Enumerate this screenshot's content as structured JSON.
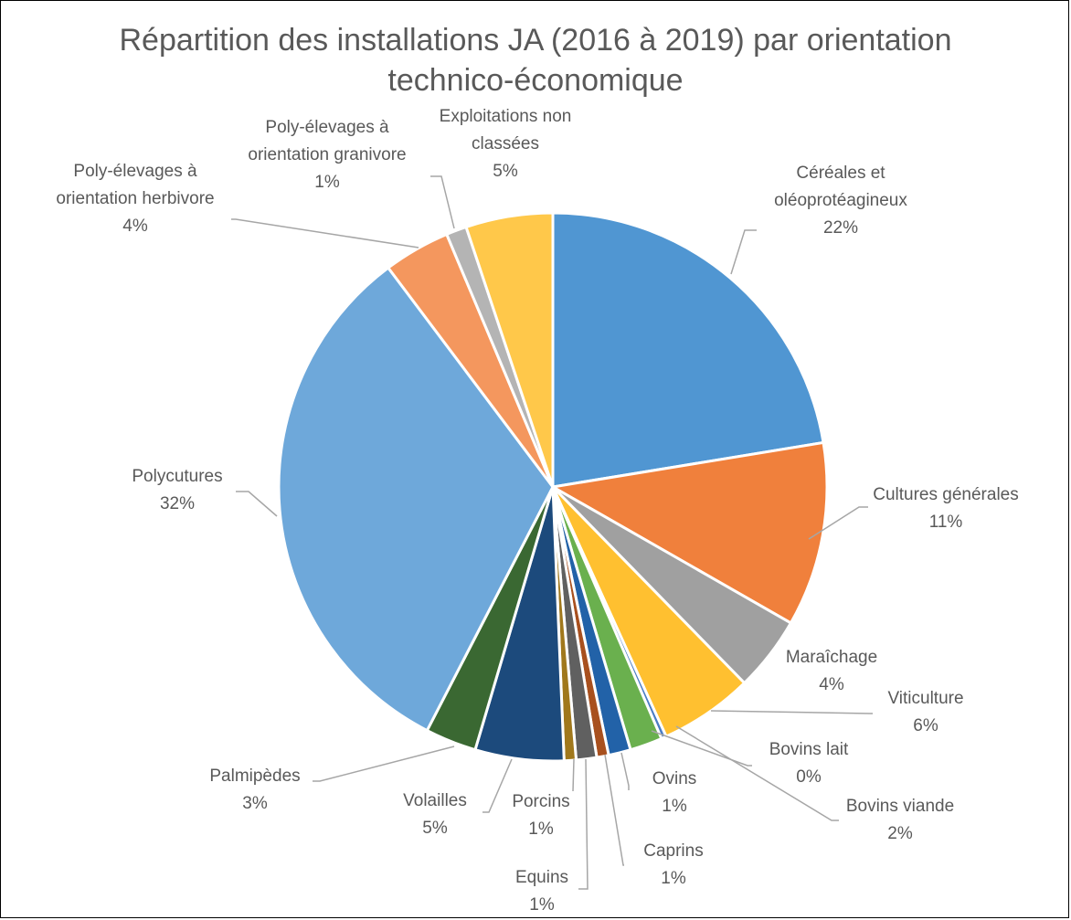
{
  "chart_data": {
    "type": "pie",
    "title_lines": [
      "Répartition des installations JA (2016 à 2019) par orientation",
      "technico-économique"
    ],
    "slices": [
      {
        "label_lines": [
          "Céréales et",
          "oléoprotéagineux"
        ],
        "value_label": "22%",
        "value": 22.3,
        "color": "#5096D2"
      },
      {
        "label_lines": [
          "Cultures générales"
        ],
        "value_label": "11%",
        "value": 10.8,
        "color": "#F0803C"
      },
      {
        "label_lines": [
          "Maraîchage"
        ],
        "value_label": "4%",
        "value": 4.4,
        "color": "#A0A0A0"
      },
      {
        "label_lines": [
          "Viticulture"
        ],
        "value_label": "6%",
        "value": 5.5,
        "color": "#FFC030"
      },
      {
        "label_lines": [
          "Bovins lait"
        ],
        "value_label": "0%",
        "value": 0.3,
        "color": "#4A7CC4"
      },
      {
        "label_lines": [
          "Bovins viande"
        ],
        "value_label": "2%",
        "value": 1.9,
        "color": "#6AB04E"
      },
      {
        "label_lines": [
          "Ovins"
        ],
        "value_label": "1%",
        "value": 1.3,
        "color": "#2262A8"
      },
      {
        "label_lines": [
          "Caprins"
        ],
        "value_label": "1%",
        "value": 0.7,
        "color": "#A8501E"
      },
      {
        "label_lines": [
          "Equins"
        ],
        "value_label": "1%",
        "value": 1.2,
        "color": "#606060"
      },
      {
        "label_lines": [
          "Porcins"
        ],
        "value_label": "1%",
        "value": 0.7,
        "color": "#A0781C"
      },
      {
        "label_lines": [
          "Volailles"
        ],
        "value_label": "5%",
        "value": 5.2,
        "color": "#1C4A7C"
      },
      {
        "label_lines": [
          "Palmipèdes"
        ],
        "value_label": "3%",
        "value": 3.0,
        "color": "#3A6832"
      },
      {
        "label_lines": [
          "Polycutures"
        ],
        "value_label": "32%",
        "value": 32.0,
        "color": "#6EA8DA"
      },
      {
        "label_lines": [
          "Poly-élevages à",
          "orientation herbivore"
        ],
        "value_label": "4%",
        "value": 3.9,
        "color": "#F4975E"
      },
      {
        "label_lines": [
          "Poly-élevages à",
          "orientation granivore"
        ],
        "value_label": "1%",
        "value": 1.2,
        "color": "#B4B4B4"
      },
      {
        "label_lines": [
          "Exploitations non",
          "classées"
        ],
        "value_label": "5%",
        "value": 5.1,
        "color": "#FFC84A"
      }
    ]
  }
}
